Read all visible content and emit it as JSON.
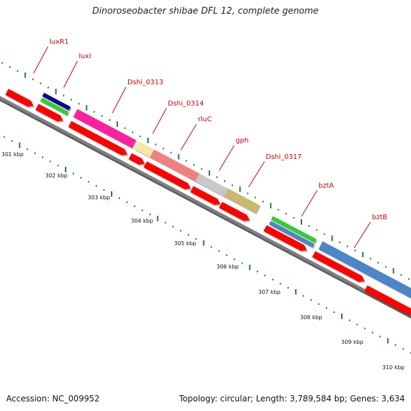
{
  "title": "Dinoroseobacter shibae DFL 12, complete genome",
  "footer": {
    "accession": "Accession: NC_009952",
    "summary": "Topology: circular; Length: 3,789,584 bp; Genes: 3,634"
  },
  "colors": {
    "cds": "#ff0000",
    "backbone": "#808080",
    "ticks": "#1a7d1a",
    "label": "#c80000",
    "navy": "#0a0a8c",
    "green": "#33cc33",
    "magenta": "#ff1f9f",
    "khaki": "#f5e6a0",
    "salmon": "#f08080",
    "silver": "#c8c8c8",
    "olive": "#c8b870",
    "steelblue": "#4a86c8"
  },
  "tick_labels": [
    "301 kbp",
    "302 kbp",
    "303 kbp",
    "304 kbp",
    "305 kbp",
    "306 kbp",
    "307 kbp",
    "308 kbp",
    "309 kbp",
    "310 kbp"
  ],
  "gene_labels": [
    "luxR1",
    "luxI",
    "Dshi_0313",
    "Dshi_0314",
    "rluC",
    "gph",
    "Dshi_0317",
    "bztA",
    "bztB"
  ]
}
